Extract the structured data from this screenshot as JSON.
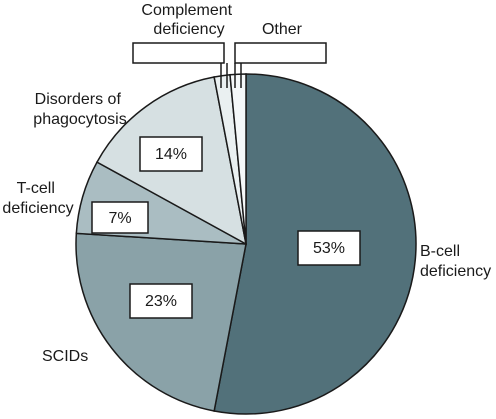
{
  "chart_data": {
    "type": "pie",
    "title": "",
    "slices": [
      {
        "category": "B-cell deficiency",
        "value": 53,
        "label": "53%",
        "color": "#52717a"
      },
      {
        "category": "SCIDs",
        "value": 23,
        "label": "23%",
        "color": "#8aa2a8"
      },
      {
        "category": "T-cell deficiency",
        "value": 7,
        "label": "7%",
        "color": "#aabdc2"
      },
      {
        "category": "Disorders of phagocytosis",
        "value": 14,
        "label": "14%",
        "color": "#d6e0e2"
      },
      {
        "category": "Complement deficiency",
        "value": 1.5,
        "label": "",
        "color": "#eaf0f1"
      },
      {
        "category": "Other",
        "value": 1.5,
        "label": "",
        "color": "#f5f8f9"
      }
    ],
    "category_labels": {
      "b_cell": [
        "B-cell",
        "deficiency"
      ],
      "scids": [
        "SCIDs"
      ],
      "t_cell": [
        "T-cell",
        "deficiency"
      ],
      "phagocytosis": [
        "Disorders of",
        "phagocytosis"
      ],
      "complement": [
        "Complement",
        "deficiency"
      ],
      "other": [
        "Other"
      ]
    }
  }
}
